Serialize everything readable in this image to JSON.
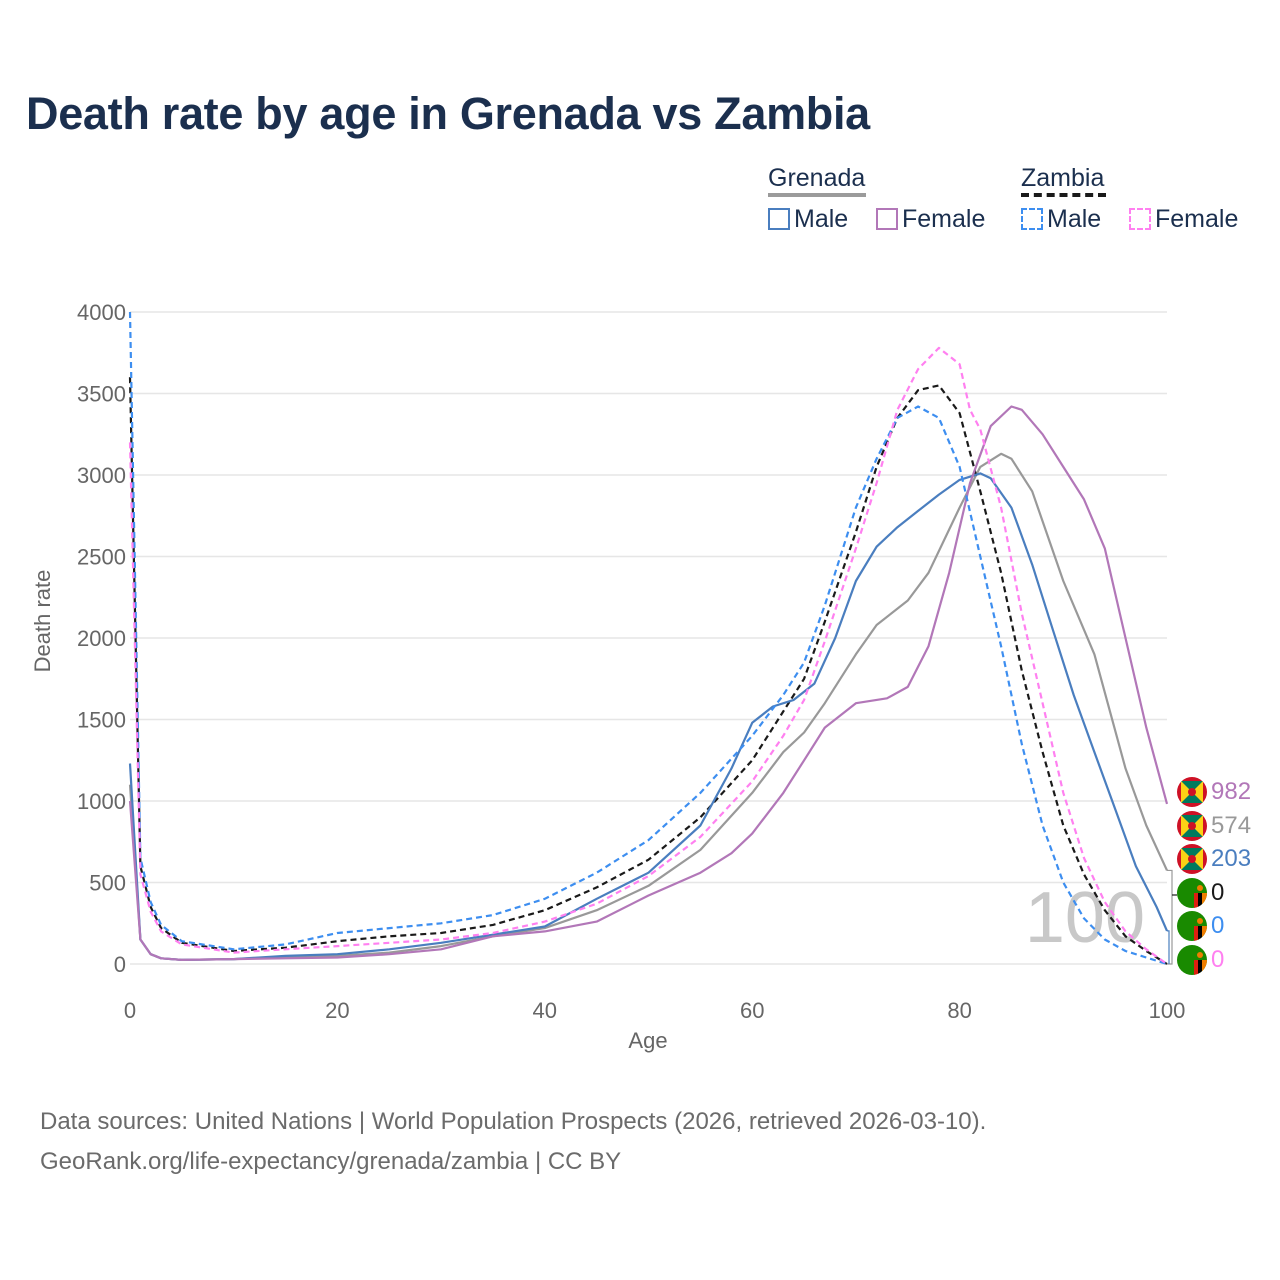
{
  "title": "Death rate by age in Grenada vs Zambia",
  "legend": {
    "groups": [
      {
        "country": "Grenada",
        "underline_color": "#9b9b9b",
        "underline_style": "solid",
        "items": [
          {
            "label": "Male",
            "color": "#4a7ebf",
            "style": "solid"
          },
          {
            "label": "Female",
            "color": "#b277b8",
            "style": "solid"
          }
        ]
      },
      {
        "country": "Zambia",
        "underline_color": "#1a1a1a",
        "underline_style": "dashed",
        "items": [
          {
            "label": "Male",
            "color": "#3d8ef0",
            "style": "dashed"
          },
          {
            "label": "Female",
            "color": "#ff80f0",
            "style": "dashed"
          }
        ]
      }
    ]
  },
  "watermark": "100",
  "end_labels": [
    {
      "value": "982",
      "color": "#b277b8",
      "flag": "grenada"
    },
    {
      "value": "574",
      "color": "#999999",
      "flag": "grenada"
    },
    {
      "value": "203",
      "color": "#4a7ebf",
      "flag": "grenada"
    },
    {
      "value": "0",
      "color": "#1a1a1a",
      "flag": "zambia"
    },
    {
      "value": "0",
      "color": "#3d8ef0",
      "flag": "zambia"
    },
    {
      "value": "0",
      "color": "#ff80f0",
      "flag": "zambia"
    }
  ],
  "footer": {
    "line1": "Data sources: United Nations | World Population Prospects (2026, retrieved 2026-03-10).",
    "line2": "GeoRank.org/life-expectancy/grenada/zambia | CC BY"
  },
  "chart_data": {
    "type": "line",
    "xlabel": "Age",
    "ylabel": "Death rate",
    "xlim": [
      0,
      100
    ],
    "ylim": [
      0,
      4000
    ],
    "x_ticks": [
      0,
      20,
      40,
      60,
      80,
      100
    ],
    "y_ticks": [
      0,
      500,
      1000,
      1500,
      2000,
      2500,
      3000,
      3500,
      4000
    ],
    "grid": true,
    "series": [
      {
        "name": "Grenada (both sexes)",
        "color": "#999999",
        "dash": "solid",
        "points": [
          [
            0,
            1100
          ],
          [
            1,
            150
          ],
          [
            2,
            60
          ],
          [
            3,
            35
          ],
          [
            5,
            25
          ],
          [
            10,
            30
          ],
          [
            15,
            45
          ],
          [
            20,
            50
          ],
          [
            25,
            70
          ],
          [
            30,
            110
          ],
          [
            35,
            170
          ],
          [
            40,
            220
          ],
          [
            45,
            330
          ],
          [
            50,
            480
          ],
          [
            55,
            700
          ],
          [
            60,
            1050
          ],
          [
            63,
            1300
          ],
          [
            65,
            1420
          ],
          [
            67,
            1600
          ],
          [
            70,
            1900
          ],
          [
            72,
            2080
          ],
          [
            75,
            2230
          ],
          [
            77,
            2400
          ],
          [
            80,
            2800
          ],
          [
            82,
            3050
          ],
          [
            84,
            3130
          ],
          [
            85,
            3100
          ],
          [
            87,
            2900
          ],
          [
            90,
            2350
          ],
          [
            93,
            1900
          ],
          [
            96,
            1200
          ],
          [
            98,
            850
          ],
          [
            100,
            574
          ]
        ]
      },
      {
        "name": "Zambia (both sexes)",
        "color": "#1a1a1a",
        "dash": "dashed",
        "points": [
          [
            0,
            3600
          ],
          [
            1,
            600
          ],
          [
            2,
            350
          ],
          [
            3,
            220
          ],
          [
            5,
            130
          ],
          [
            10,
            80
          ],
          [
            15,
            100
          ],
          [
            20,
            140
          ],
          [
            25,
            170
          ],
          [
            30,
            190
          ],
          [
            35,
            240
          ],
          [
            40,
            330
          ],
          [
            45,
            470
          ],
          [
            50,
            640
          ],
          [
            55,
            900
          ],
          [
            60,
            1250
          ],
          [
            63,
            1550
          ],
          [
            65,
            1750
          ],
          [
            67,
            2100
          ],
          [
            70,
            2650
          ],
          [
            72,
            3050
          ],
          [
            74,
            3350
          ],
          [
            76,
            3520
          ],
          [
            78,
            3550
          ],
          [
            80,
            3380
          ],
          [
            82,
            2900
          ],
          [
            84,
            2400
          ],
          [
            86,
            1800
          ],
          [
            88,
            1300
          ],
          [
            90,
            850
          ],
          [
            92,
            550
          ],
          [
            94,
            330
          ],
          [
            96,
            170
          ],
          [
            98,
            80
          ],
          [
            100,
            0
          ]
        ]
      },
      {
        "name": "Grenada Male",
        "color": "#4a7ebf",
        "dash": "solid",
        "points": [
          [
            0,
            1230
          ],
          [
            1,
            150
          ],
          [
            2,
            60
          ],
          [
            3,
            35
          ],
          [
            5,
            25
          ],
          [
            10,
            30
          ],
          [
            15,
            50
          ],
          [
            20,
            60
          ],
          [
            25,
            90
          ],
          [
            30,
            130
          ],
          [
            35,
            180
          ],
          [
            40,
            230
          ],
          [
            45,
            400
          ],
          [
            50,
            560
          ],
          [
            55,
            850
          ],
          [
            58,
            1200
          ],
          [
            60,
            1480
          ],
          [
            62,
            1580
          ],
          [
            64,
            1620
          ],
          [
            66,
            1720
          ],
          [
            68,
            2000
          ],
          [
            70,
            2350
          ],
          [
            72,
            2560
          ],
          [
            74,
            2680
          ],
          [
            76,
            2780
          ],
          [
            78,
            2880
          ],
          [
            80,
            2970
          ],
          [
            82,
            3010
          ],
          [
            83,
            2980
          ],
          [
            85,
            2800
          ],
          [
            87,
            2450
          ],
          [
            89,
            2050
          ],
          [
            91,
            1650
          ],
          [
            93,
            1300
          ],
          [
            95,
            950
          ],
          [
            97,
            600
          ],
          [
            99,
            350
          ],
          [
            100,
            203
          ]
        ]
      },
      {
        "name": "Grenada Female",
        "color": "#b277b8",
        "dash": "solid",
        "points": [
          [
            0,
            1000
          ],
          [
            1,
            150
          ],
          [
            2,
            60
          ],
          [
            3,
            35
          ],
          [
            5,
            25
          ],
          [
            10,
            30
          ],
          [
            15,
            35
          ],
          [
            20,
            40
          ],
          [
            25,
            60
          ],
          [
            30,
            90
          ],
          [
            35,
            170
          ],
          [
            40,
            200
          ],
          [
            45,
            260
          ],
          [
            50,
            420
          ],
          [
            55,
            560
          ],
          [
            58,
            680
          ],
          [
            60,
            800
          ],
          [
            63,
            1050
          ],
          [
            65,
            1250
          ],
          [
            67,
            1450
          ],
          [
            70,
            1600
          ],
          [
            73,
            1630
          ],
          [
            75,
            1700
          ],
          [
            77,
            1950
          ],
          [
            79,
            2400
          ],
          [
            81,
            2950
          ],
          [
            83,
            3300
          ],
          [
            85,
            3420
          ],
          [
            86,
            3400
          ],
          [
            88,
            3250
          ],
          [
            90,
            3050
          ],
          [
            92,
            2850
          ],
          [
            94,
            2550
          ],
          [
            96,
            2000
          ],
          [
            98,
            1450
          ],
          [
            100,
            982
          ]
        ]
      },
      {
        "name": "Zambia Male",
        "color": "#3d8ef0",
        "dash": "dashed",
        "points": [
          [
            0,
            4000
          ],
          [
            1,
            650
          ],
          [
            2,
            380
          ],
          [
            3,
            240
          ],
          [
            5,
            140
          ],
          [
            10,
            90
          ],
          [
            15,
            120
          ],
          [
            20,
            190
          ],
          [
            25,
            220
          ],
          [
            30,
            250
          ],
          [
            35,
            300
          ],
          [
            40,
            400
          ],
          [
            45,
            560
          ],
          [
            50,
            760
          ],
          [
            55,
            1050
          ],
          [
            60,
            1400
          ],
          [
            63,
            1650
          ],
          [
            65,
            1850
          ],
          [
            67,
            2200
          ],
          [
            70,
            2800
          ],
          [
            72,
            3100
          ],
          [
            74,
            3350
          ],
          [
            76,
            3420
          ],
          [
            78,
            3350
          ],
          [
            80,
            3050
          ],
          [
            82,
            2500
          ],
          [
            84,
            1950
          ],
          [
            86,
            1350
          ],
          [
            88,
            850
          ],
          [
            90,
            500
          ],
          [
            92,
            280
          ],
          [
            94,
            150
          ],
          [
            96,
            80
          ],
          [
            98,
            40
          ],
          [
            100,
            0
          ]
        ]
      },
      {
        "name": "Zambia Female",
        "color": "#ff80f0",
        "dash": "dashed",
        "points": [
          [
            0,
            3200
          ],
          [
            1,
            550
          ],
          [
            2,
            320
          ],
          [
            3,
            200
          ],
          [
            5,
            120
          ],
          [
            10,
            70
          ],
          [
            15,
            90
          ],
          [
            20,
            110
          ],
          [
            25,
            130
          ],
          [
            30,
            150
          ],
          [
            35,
            190
          ],
          [
            40,
            260
          ],
          [
            45,
            370
          ],
          [
            50,
            540
          ],
          [
            55,
            780
          ],
          [
            60,
            1120
          ],
          [
            63,
            1400
          ],
          [
            65,
            1620
          ],
          [
            67,
            1980
          ],
          [
            70,
            2550
          ],
          [
            72,
            2950
          ],
          [
            74,
            3400
          ],
          [
            76,
            3650
          ],
          [
            78,
            3780
          ],
          [
            80,
            3680
          ],
          [
            81,
            3400
          ],
          [
            82,
            3280
          ],
          [
            84,
            2800
          ],
          [
            86,
            2150
          ],
          [
            88,
            1600
          ],
          [
            90,
            1050
          ],
          [
            92,
            650
          ],
          [
            94,
            380
          ],
          [
            96,
            200
          ],
          [
            98,
            90
          ],
          [
            100,
            0
          ]
        ]
      }
    ]
  }
}
